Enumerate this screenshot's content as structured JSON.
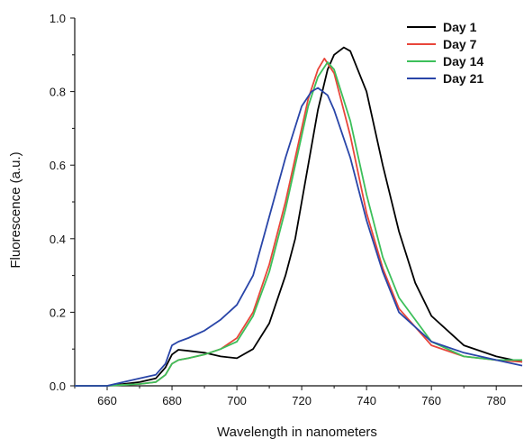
{
  "chart_data": {
    "type": "line",
    "title": "",
    "xlabel": "Wavelength in nanometers",
    "ylabel": "Fluorescence (a.u.)",
    "xlim": [
      650,
      788
    ],
    "ylim": [
      0,
      1.0
    ],
    "x_ticks": [
      660,
      680,
      700,
      720,
      740,
      760,
      780
    ],
    "y_ticks": [
      0.0,
      0.2,
      0.4,
      0.6,
      0.8,
      1.0
    ],
    "x_tick_labels": [
      "660",
      "680",
      "700",
      "720",
      "740",
      "760",
      "780"
    ],
    "y_tick_labels": [
      "0.0",
      "0.2",
      "0.4",
      "0.6",
      "0.8",
      "1.0"
    ],
    "grid": false,
    "legend_position": "top-right",
    "series": [
      {
        "name": "Day 1",
        "color": "#000000",
        "x": [
          650,
          660,
          665,
          670,
          675,
          678,
          680,
          682,
          685,
          690,
          695,
          700,
          705,
          710,
          715,
          718,
          720,
          722,
          725,
          728,
          730,
          733,
          735,
          740,
          745,
          750,
          755,
          760,
          770,
          780,
          788
        ],
        "y": [
          0.0,
          0.0,
          0.005,
          0.01,
          0.02,
          0.05,
          0.085,
          0.098,
          0.095,
          0.09,
          0.08,
          0.075,
          0.1,
          0.17,
          0.3,
          0.4,
          0.5,
          0.6,
          0.75,
          0.86,
          0.9,
          0.92,
          0.91,
          0.8,
          0.6,
          0.42,
          0.28,
          0.19,
          0.11,
          0.08,
          0.065
        ]
      },
      {
        "name": "Day 7",
        "color": "#e8463a",
        "x": [
          650,
          660,
          670,
          675,
          678,
          680,
          682,
          685,
          690,
          695,
          700,
          705,
          710,
          715,
          720,
          722,
          725,
          727,
          730,
          735,
          740,
          745,
          750,
          760,
          770,
          780,
          788
        ],
        "y": [
          0.0,
          0.0,
          0.005,
          0.01,
          0.03,
          0.06,
          0.07,
          0.075,
          0.085,
          0.1,
          0.13,
          0.2,
          0.33,
          0.5,
          0.7,
          0.78,
          0.86,
          0.89,
          0.85,
          0.68,
          0.47,
          0.32,
          0.21,
          0.11,
          0.08,
          0.07,
          0.065
        ]
      },
      {
        "name": "Day 14",
        "color": "#3cbf5a",
        "x": [
          650,
          660,
          670,
          675,
          678,
          680,
          682,
          685,
          690,
          695,
          700,
          705,
          710,
          715,
          720,
          722,
          725,
          728,
          730,
          735,
          740,
          745,
          750,
          760,
          770,
          780,
          788
        ],
        "y": [
          0.0,
          0.0,
          0.005,
          0.01,
          0.03,
          0.06,
          0.07,
          0.075,
          0.085,
          0.1,
          0.12,
          0.19,
          0.31,
          0.48,
          0.68,
          0.76,
          0.84,
          0.88,
          0.86,
          0.72,
          0.52,
          0.35,
          0.24,
          0.12,
          0.08,
          0.07,
          0.07
        ]
      },
      {
        "name": "Day 21",
        "color": "#2945a8",
        "x": [
          650,
          660,
          665,
          670,
          675,
          678,
          680,
          682,
          685,
          690,
          695,
          700,
          705,
          710,
          715,
          720,
          723,
          725,
          728,
          730,
          735,
          740,
          745,
          750,
          760,
          770,
          780,
          788
        ],
        "y": [
          0.0,
          0.0,
          0.01,
          0.02,
          0.03,
          0.06,
          0.11,
          0.12,
          0.13,
          0.15,
          0.18,
          0.22,
          0.3,
          0.46,
          0.62,
          0.76,
          0.8,
          0.81,
          0.79,
          0.75,
          0.62,
          0.45,
          0.31,
          0.2,
          0.12,
          0.09,
          0.07,
          0.055
        ]
      }
    ]
  }
}
